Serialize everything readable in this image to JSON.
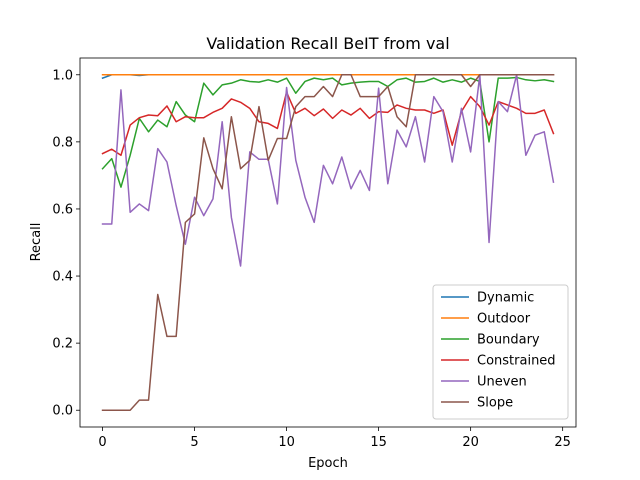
{
  "chart_data": {
    "type": "line",
    "title": "Validation Recall BeIT from val",
    "xlabel": "Epoch",
    "ylabel": "Recall",
    "xlim": [
      -1.225,
      25.725
    ],
    "ylim": [
      -0.05,
      1.05
    ],
    "xticks": [
      0,
      5,
      10,
      15,
      20,
      25
    ],
    "yticks": [
      0.0,
      0.2,
      0.4,
      0.6,
      0.8,
      1.0
    ],
    "xtick_labels": [
      "0",
      "5",
      "10",
      "15",
      "20",
      "25"
    ],
    "ytick_labels": [
      "0.0",
      "0.2",
      "0.4",
      "0.6",
      "0.8",
      "1.0"
    ],
    "grid": false,
    "legend_position": "lower-right",
    "x": [
      0,
      0.5,
      1,
      1.5,
      2,
      2.5,
      3,
      3.5,
      4,
      4.5,
      5,
      5.5,
      6,
      6.5,
      7,
      7.5,
      8,
      8.5,
      9,
      9.5,
      10,
      10.5,
      11,
      11.5,
      12,
      12.5,
      13,
      13.5,
      14,
      14.5,
      15,
      15.5,
      16,
      16.5,
      17,
      17.5,
      18,
      18.5,
      19,
      19.5,
      20,
      20.5,
      21,
      21.5,
      22,
      22.5,
      23,
      23.5,
      24,
      24.5
    ],
    "series": [
      {
        "name": "Dynamic",
        "color": "#1f77b4",
        "values": [
          0.99,
          1,
          1,
          1,
          0.998,
          1,
          1,
          1,
          1,
          1,
          1,
          1,
          1,
          1,
          1,
          1,
          1,
          1,
          1,
          1,
          1,
          1,
          1,
          1,
          1,
          1,
          1,
          1,
          1,
          1,
          1,
          1,
          1,
          1,
          1,
          1,
          1,
          1,
          1,
          1,
          1,
          1,
          1,
          1,
          1,
          1,
          1,
          1,
          1,
          1
        ]
      },
      {
        "name": "Outdoor",
        "color": "#ff7f0e",
        "values": [
          1,
          1,
          1,
          1,
          1,
          1,
          1,
          1,
          1,
          1,
          1,
          1,
          1,
          1,
          1,
          1,
          1,
          1,
          1,
          1,
          1,
          1,
          1,
          1,
          1,
          1,
          1,
          1,
          1,
          1,
          1,
          1,
          1,
          1,
          1,
          1,
          1,
          1,
          1,
          1,
          1,
          1,
          1,
          1,
          1,
          1,
          1,
          1,
          1,
          1
        ]
      },
      {
        "name": "Boundary",
        "color": "#2ca02c",
        "values": [
          0.72,
          0.75,
          0.665,
          0.76,
          0.87,
          0.83,
          0.865,
          0.845,
          0.92,
          0.88,
          0.86,
          0.975,
          0.94,
          0.97,
          0.975,
          0.985,
          0.98,
          0.978,
          0.985,
          0.978,
          0.99,
          0.945,
          0.98,
          0.99,
          0.985,
          0.99,
          0.97,
          0.975,
          0.978,
          0.98,
          0.98,
          0.965,
          0.985,
          0.99,
          0.978,
          0.98,
          0.99,
          0.978,
          0.985,
          0.978,
          0.99,
          0.98,
          0.8,
          0.99,
          0.99,
          0.992,
          0.985,
          0.982,
          0.985,
          0.98
        ]
      },
      {
        "name": "Constrained",
        "color": "#d62728",
        "values": [
          0.765,
          0.778,
          0.76,
          0.85,
          0.872,
          0.88,
          0.878,
          0.907,
          0.86,
          0.875,
          0.872,
          0.872,
          0.888,
          0.9,
          0.928,
          0.918,
          0.9,
          0.86,
          0.855,
          0.84,
          0.948,
          0.885,
          0.9,
          0.878,
          0.898,
          0.87,
          0.895,
          0.88,
          0.9,
          0.87,
          0.89,
          0.888,
          0.91,
          0.9,
          0.895,
          0.895,
          0.885,
          0.895,
          0.79,
          0.89,
          0.935,
          0.905,
          0.85,
          0.92,
          0.91,
          0.9,
          0.885,
          0.885,
          0.895,
          0.825
        ]
      },
      {
        "name": "Uneven",
        "color": "#9467bd",
        "values": [
          0.555,
          0.555,
          0.955,
          0.59,
          0.615,
          0.595,
          0.78,
          0.74,
          0.61,
          0.495,
          0.635,
          0.58,
          0.63,
          0.86,
          0.575,
          0.43,
          0.77,
          0.748,
          0.748,
          0.615,
          0.962,
          0.745,
          0.635,
          0.56,
          0.73,
          0.675,
          0.755,
          0.66,
          0.715,
          0.655,
          0.96,
          0.675,
          0.835,
          0.785,
          0.875,
          0.74,
          0.935,
          0.89,
          0.74,
          0.9,
          0.77,
          1.0,
          0.5,
          0.92,
          0.89,
          1.0,
          0.76,
          0.82,
          0.83,
          0.68
        ]
      },
      {
        "name": "Slope",
        "color": "#8c564b",
        "values": [
          0,
          0,
          0,
          0,
          0.03,
          0.03,
          0.345,
          0.22,
          0.22,
          0.56,
          0.585,
          0.812,
          0.72,
          0.66,
          0.875,
          0.72,
          0.745,
          0.905,
          0.745,
          0.81,
          0.81,
          0.905,
          0.935,
          0.935,
          0.965,
          0.935,
          1.0,
          1.0,
          0.935,
          0.935,
          0.935,
          0.965,
          0.875,
          0.845,
          1.0,
          1.0,
          1.0,
          1.0,
          1.0,
          1.0,
          0.965,
          1.0,
          1.0,
          1.0,
          1.0,
          1.0,
          1.0,
          1.0,
          1.0,
          1.0
        ]
      }
    ]
  }
}
